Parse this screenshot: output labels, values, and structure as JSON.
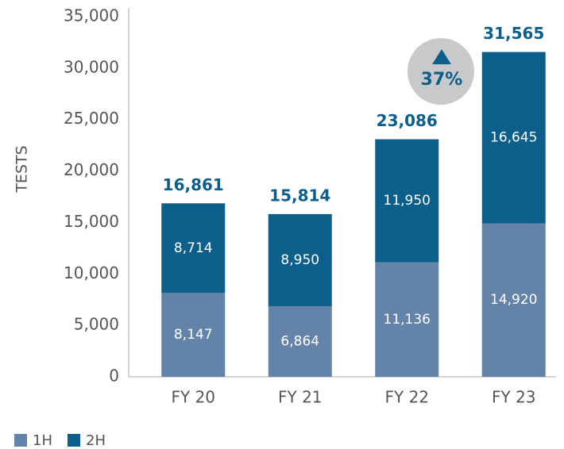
{
  "chart_data": {
    "type": "stacked_bar",
    "y_label": "TESTS",
    "categories": [
      "FY 20",
      "FY 21",
      "FY 22",
      "FY 23"
    ],
    "series": [
      {
        "name": "1H",
        "color": "#6384a8",
        "values": [
          8147,
          6864,
          11136,
          14920
        ],
        "value_labels": [
          "8,147",
          "6,864",
          "11,136",
          "14,920"
        ]
      },
      {
        "name": "2H",
        "color": "#0b5f8a",
        "values": [
          8714,
          8950,
          11950,
          16645
        ],
        "value_labels": [
          "8,714",
          "8,950",
          "11,950",
          "16,645"
        ]
      }
    ],
    "totals": {
      "values": [
        16861,
        15814,
        23086,
        31565
      ],
      "value_labels": [
        "16,861",
        "15,814",
        "23,086",
        "31,565"
      ],
      "color": "#0b5f8a"
    },
    "annotation": "37%",
    "ylim": [
      0,
      35000
    ],
    "yticks": [
      0,
      {
        "value": 5000,
        "label": "5,000"
      },
      {
        "value": 10000,
        "label": "10,000"
      },
      {
        "value": 15000,
        "label": "15,000"
      },
      {
        "value": 20000,
        "label": "20,000"
      },
      {
        "value": 25000,
        "label": "25,000"
      },
      {
        "value": 30000,
        "label": "30,000"
      },
      {
        "value": 35000,
        "label": "35,000"
      }
    ],
    "legend": "bottom-left"
  }
}
